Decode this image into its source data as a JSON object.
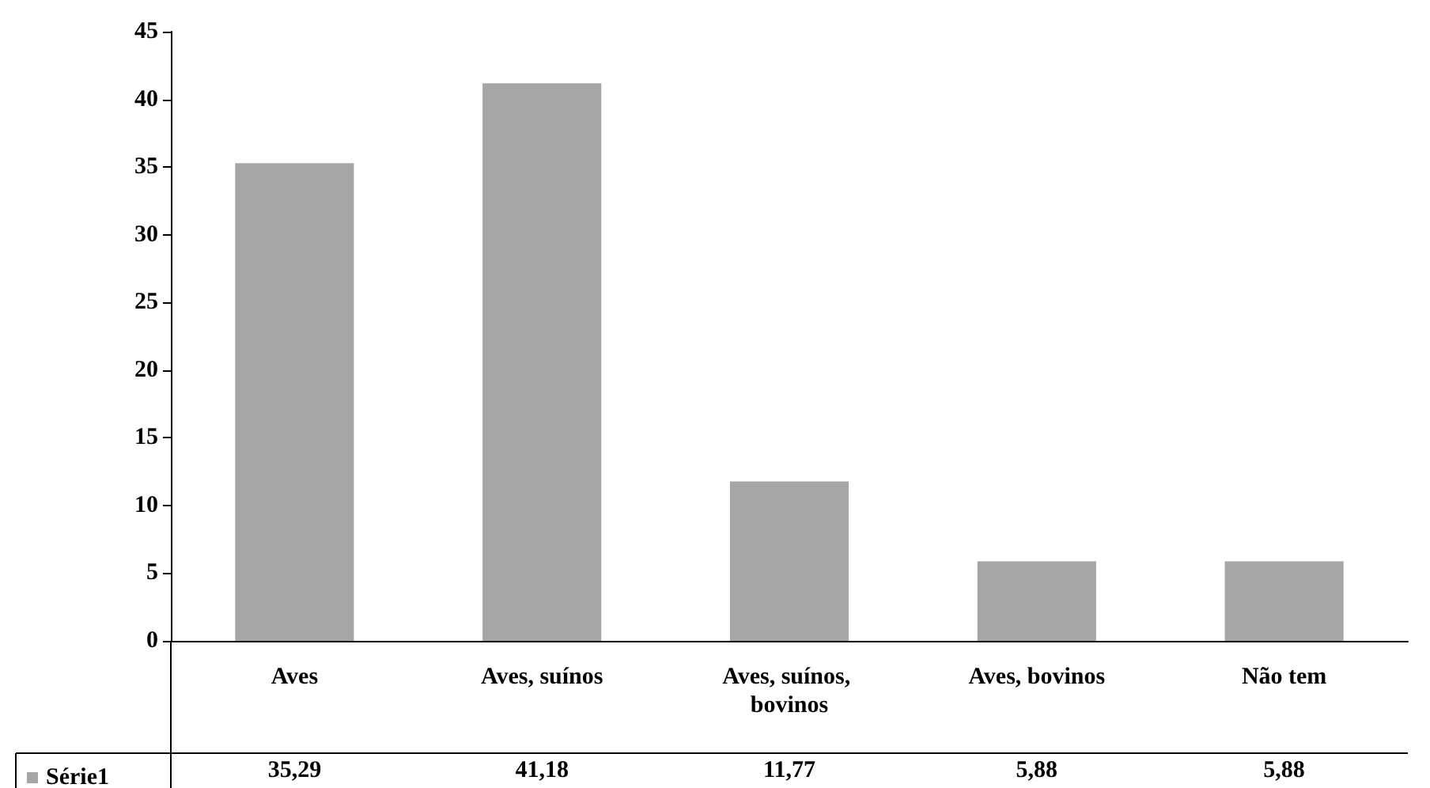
{
  "chart_data": {
    "type": "bar",
    "categories": [
      "Aves",
      "Aves, suínos",
      "Aves, suínos, bovinos",
      "Aves, bovinos",
      "Não tem"
    ],
    "series": [
      {
        "name": "Série1",
        "color": "#a6a6a6",
        "values": [
          35.29,
          41.18,
          11.77,
          5.88,
          5.88
        ],
        "value_labels": [
          "35,29",
          "41,18",
          "11,77",
          "5,88",
          "5,88"
        ]
      }
    ],
    "ylim": [
      0,
      45
    ],
    "yticks": [
      0,
      5,
      10,
      15,
      20,
      25,
      30,
      35,
      40,
      45
    ],
    "grid": false,
    "legend": "bottom left"
  }
}
